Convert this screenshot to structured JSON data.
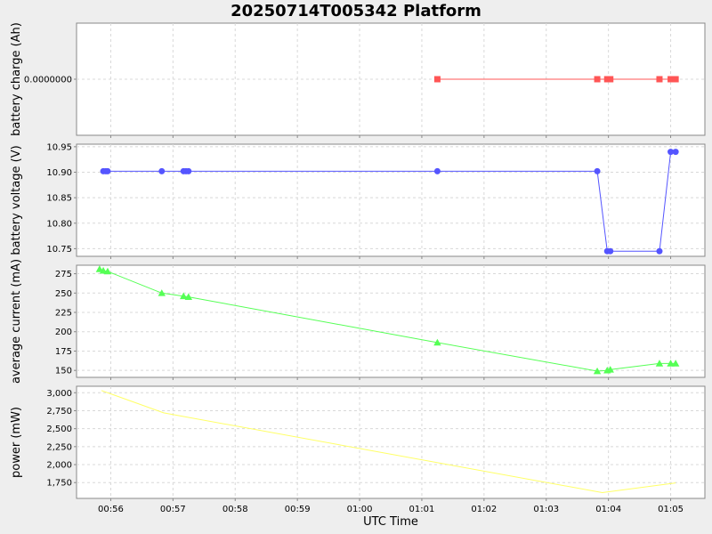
{
  "chart_data": {
    "type": "line",
    "title": "20250714T005342 Platform",
    "xlabel": "UTC Time",
    "x_ticks": [
      "00:56",
      "00:57",
      "00:58",
      "00:59",
      "01:00",
      "01:01",
      "01:02",
      "01:03",
      "01:04",
      "01:05"
    ],
    "x_range_minutes": [
      55.45,
      65.55
    ],
    "grid": true,
    "panels": [
      {
        "ylabel": "battery charge (Ah)",
        "color": "#ff5555",
        "marker": "square",
        "y_ticks": [
          {
            "v": 0,
            "label": "0.0000000"
          }
        ],
        "ylim": [
          -1,
          1
        ],
        "points": [
          {
            "x": 61.25,
            "y": 0
          },
          {
            "x": 63.82,
            "y": 0
          },
          {
            "x": 63.98,
            "y": 0
          },
          {
            "x": 64.03,
            "y": 0
          },
          {
            "x": 64.82,
            "y": 0
          },
          {
            "x": 65.0,
            "y": 0
          },
          {
            "x": 65.08,
            "y": 0
          }
        ]
      },
      {
        "ylabel": "battery voltage (V)",
        "color": "#5555ff",
        "marker": "circle",
        "y_ticks": [
          {
            "v": 10.75,
            "label": "10.75"
          },
          {
            "v": 10.8,
            "label": "10.80"
          },
          {
            "v": 10.85,
            "label": "10.85"
          },
          {
            "v": 10.9,
            "label": "10.90"
          },
          {
            "v": 10.95,
            "label": "10.95"
          }
        ],
        "ylim": [
          10.735,
          10.955
        ],
        "points": [
          {
            "x": 55.88,
            "y": 10.902
          },
          {
            "x": 55.92,
            "y": 10.902
          },
          {
            "x": 55.95,
            "y": 10.902
          },
          {
            "x": 56.82,
            "y": 10.902
          },
          {
            "x": 57.17,
            "y": 10.902
          },
          {
            "x": 57.21,
            "y": 10.902
          },
          {
            "x": 57.25,
            "y": 10.902
          },
          {
            "x": 61.25,
            "y": 10.902
          },
          {
            "x": 63.82,
            "y": 10.902
          },
          {
            "x": 63.98,
            "y": 10.745
          },
          {
            "x": 64.03,
            "y": 10.745
          },
          {
            "x": 64.82,
            "y": 10.745
          },
          {
            "x": 65.0,
            "y": 10.94
          },
          {
            "x": 65.08,
            "y": 10.94
          }
        ]
      },
      {
        "ylabel": "average current (mA)",
        "color": "#55ff55",
        "marker": "triangle",
        "y_ticks": [
          {
            "v": 150,
            "label": "150"
          },
          {
            "v": 175,
            "label": "175"
          },
          {
            "v": 200,
            "label": "200"
          },
          {
            "v": 225,
            "label": "225"
          },
          {
            "v": 250,
            "label": "250"
          },
          {
            "v": 275,
            "label": "275"
          }
        ],
        "ylim": [
          141,
          286
        ],
        "points": [
          {
            "x": 55.82,
            "y": 281
          },
          {
            "x": 55.88,
            "y": 279
          },
          {
            "x": 55.95,
            "y": 278
          },
          {
            "x": 56.82,
            "y": 250
          },
          {
            "x": 57.17,
            "y": 246
          },
          {
            "x": 57.25,
            "y": 245
          },
          {
            "x": 61.25,
            "y": 186
          },
          {
            "x": 63.82,
            "y": 149
          },
          {
            "x": 63.98,
            "y": 150
          },
          {
            "x": 64.03,
            "y": 151
          },
          {
            "x": 64.82,
            "y": 159
          },
          {
            "x": 65.0,
            "y": 159
          },
          {
            "x": 65.08,
            "y": 159
          }
        ]
      },
      {
        "ylabel": "power (mW)",
        "color": "#ffff66",
        "marker": "none",
        "y_ticks": [
          {
            "v": 1750,
            "label": "1,750"
          },
          {
            "v": 2000,
            "label": "2,000"
          },
          {
            "v": 2250,
            "label": "2,250"
          },
          {
            "v": 2500,
            "label": "2,500"
          },
          {
            "v": 2750,
            "label": "2,750"
          },
          {
            "v": 3000,
            "label": "3,000"
          }
        ],
        "ylim": [
          1530,
          3090
        ],
        "points": [
          {
            "x": 55.85,
            "y": 3030
          },
          {
            "x": 56.85,
            "y": 2720
          },
          {
            "x": 63.9,
            "y": 1610
          },
          {
            "x": 65.08,
            "y": 1745
          }
        ]
      }
    ]
  }
}
